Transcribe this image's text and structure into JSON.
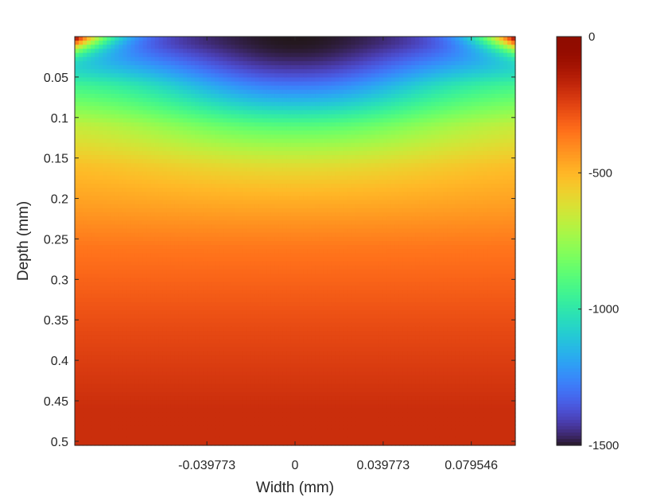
{
  "chart_data": {
    "type": "heatmap",
    "title": "",
    "xlabel": "Width (mm)",
    "ylabel": "Depth (mm)",
    "x_range": [
      -0.0994,
      0.0994
    ],
    "y_range": [
      0,
      0.505
    ],
    "y_reversed": true,
    "x_ticks": [
      {
        "value": -0.039773,
        "label": "-0.039773"
      },
      {
        "value": 0,
        "label": "0"
      },
      {
        "value": 0.039773,
        "label": "0.039773"
      },
      {
        "value": 0.079546,
        "label": "0.079546"
      }
    ],
    "y_ticks": [
      {
        "value": 0.05,
        "label": "0.05"
      },
      {
        "value": 0.1,
        "label": "0.1"
      },
      {
        "value": 0.15,
        "label": "0.15"
      },
      {
        "value": 0.2,
        "label": "0.2"
      },
      {
        "value": 0.25,
        "label": "0.25"
      },
      {
        "value": 0.3,
        "label": "0.3"
      },
      {
        "value": 0.35,
        "label": "0.35"
      },
      {
        "value": 0.4,
        "label": "0.4"
      },
      {
        "value": 0.45,
        "label": "0.45"
      },
      {
        "value": 0.5,
        "label": "0.5"
      }
    ],
    "colorbar": {
      "colormap": "turbo",
      "range": [
        -1500,
        0
      ],
      "ticks": [
        {
          "value": 0,
          "label": "0"
        },
        {
          "value": -500,
          "label": "-500"
        },
        {
          "value": -1000,
          "label": "-1000"
        },
        {
          "value": -1500,
          "label": "-1500"
        }
      ]
    },
    "field": {
      "description_values": "approximate field values (data units) at depth/width samples",
      "minimum": {
        "value": -1500,
        "x": 0.0,
        "depth": 0.0
      },
      "centerline_profile": [
        {
          "depth": 0.0,
          "value": -1500
        },
        {
          "depth": 0.05,
          "value": -1380
        },
        {
          "depth": 0.1,
          "value": -920
        },
        {
          "depth": 0.15,
          "value": -640
        },
        {
          "depth": 0.2,
          "value": -500
        },
        {
          "depth": 0.25,
          "value": -430
        },
        {
          "depth": 0.3,
          "value": -350
        },
        {
          "depth": 0.4,
          "value": -260
        },
        {
          "depth": 0.5,
          "value": -190
        }
      ],
      "surface_edge_value": -40
    }
  }
}
